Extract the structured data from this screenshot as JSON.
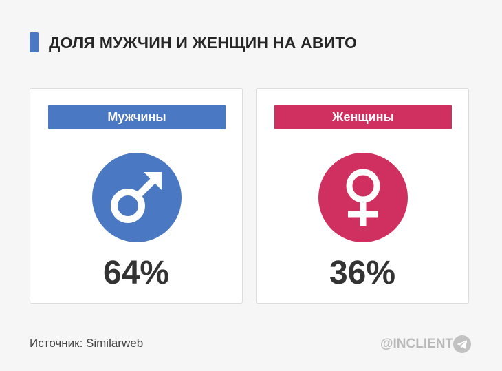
{
  "title": "ДОЛЯ МУЖЧИН И ЖЕНЩИН НА АВИТО",
  "cards": [
    {
      "label": "Мужчины",
      "percent": "64%",
      "share": 0.64,
      "color": "#4a78c2",
      "icon": "male-symbol-icon"
    },
    {
      "label": "Женщины",
      "percent": "36%",
      "share": 0.36,
      "color": "#d0305f",
      "icon": "female-symbol-icon"
    }
  ],
  "source": "Источник: Similarweb",
  "brand": "@INCLIENT",
  "brand_icon": "telegram-icon"
}
